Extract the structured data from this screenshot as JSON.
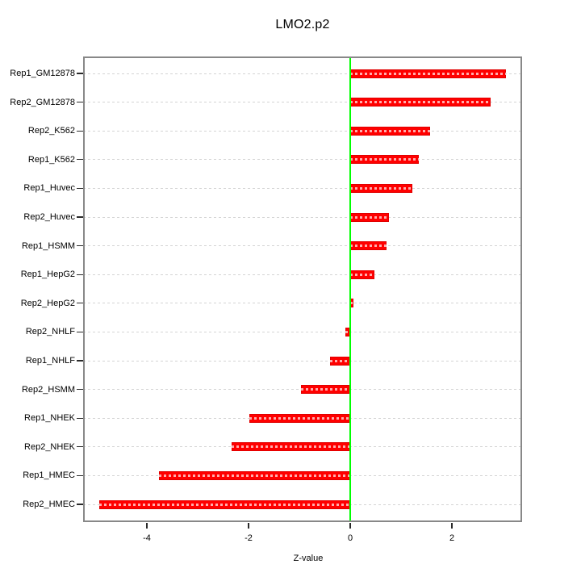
{
  "chart_data": {
    "type": "bar",
    "orientation": "horizontal",
    "title": "LMO2.p2",
    "xlabel": "Z-value",
    "ylabel": "",
    "categories": [
      "Rep1_GM12878",
      "Rep2_GM12878",
      "Rep2_K562",
      "Rep1_K562",
      "Rep1_Huvec",
      "Rep2_Huvec",
      "Rep1_HSMM",
      "Rep1_HepG2",
      "Rep2_HepG2",
      "Rep2_NHLF",
      "Rep1_NHLF",
      "Rep2_HSMM",
      "Rep1_NHEK",
      "Rep2_NHEK",
      "Rep1_HMEC",
      "Rep2_HMEC"
    ],
    "values": [
      3.07,
      2.76,
      1.57,
      1.35,
      1.22,
      0.76,
      0.72,
      0.47,
      0.06,
      -0.1,
      -0.4,
      -0.97,
      -1.98,
      -2.33,
      -3.76,
      -4.94
    ],
    "xticks": [
      -4,
      -2,
      0,
      2
    ],
    "xtick_labels": [
      "-4",
      "-2",
      "0",
      "2"
    ],
    "xlim": [
      -5.25,
      3.38
    ],
    "grid": true,
    "grid_style": "dashed",
    "zero_line": 0,
    "legend": null,
    "colors": {
      "bar": "#ff0000",
      "zero_line": "#00ff00",
      "grid": "#d4d4d4",
      "frame": "#888888",
      "tick": "#2a2a2a",
      "text": "#000000"
    }
  }
}
